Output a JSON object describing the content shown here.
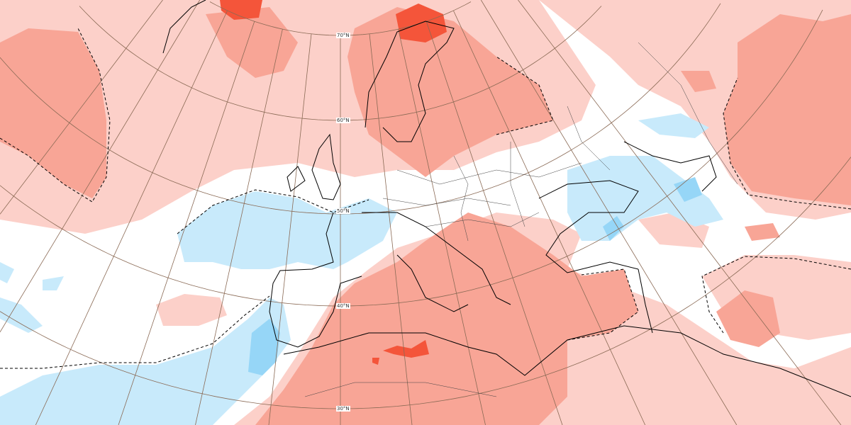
{
  "map": {
    "latitude_labels": [
      "70°N",
      "60°N",
      "50°N",
      "40°N",
      "30°N"
    ],
    "colors": {
      "warm_light": "#fcd0c9",
      "warm_medium": "#f8a596",
      "warm_strong": "#f4553a",
      "cool_light": "#c8eafb",
      "cool_medium": "#96d6f7",
      "graticule": "#8a6a55",
      "coastline": "#000000"
    }
  }
}
